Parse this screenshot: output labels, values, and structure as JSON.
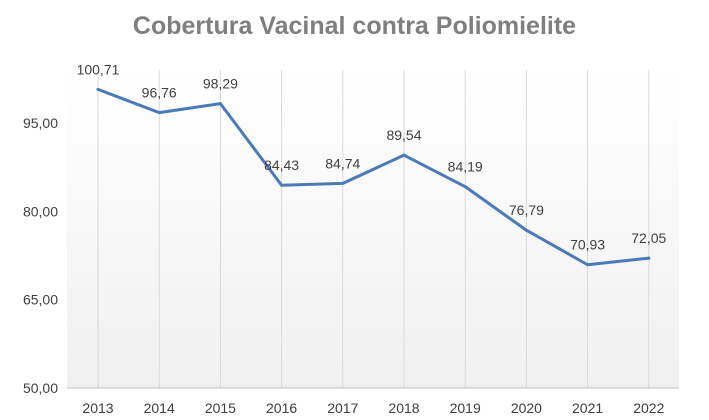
{
  "chart_data": {
    "type": "line",
    "title": "Cobertura Vacinal contra Poliomielite",
    "xlabel": "",
    "ylabel": "",
    "categories": [
      "2013",
      "2014",
      "2015",
      "2016",
      "2017",
      "2018",
      "2019",
      "2020",
      "2021",
      "2022"
    ],
    "series": [
      {
        "values": [
          100.71,
          96.76,
          98.29,
          84.43,
          84.74,
          89.54,
          84.19,
          76.79,
          70.93,
          72.05
        ],
        "labels": [
          "100,71",
          "96,76",
          "98,29",
          "84,43",
          "84,74",
          "89,54",
          "84,19",
          "76,79",
          "70,93",
          "72,05"
        ]
      }
    ],
    "ylim": [
      50,
      104
    ],
    "yticks": [
      50,
      65,
      80,
      95
    ],
    "ytick_labels": [
      "50,00",
      "65,00",
      "80,00",
      "95,00"
    ],
    "grid": "vertical",
    "legend": "none",
    "colors": {
      "line": "#4a7ab8",
      "grid": "#d9d9d9",
      "title": "#7f7f7f"
    }
  }
}
